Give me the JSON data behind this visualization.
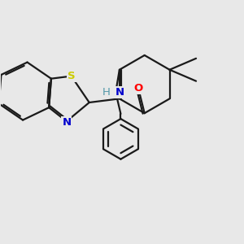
{
  "background_color": "#e8e8e8",
  "bond_color": "#1a1a1a",
  "atom_colors": {
    "O": "#ff0000",
    "S": "#cccc00",
    "N": "#0000cc",
    "H": "#5599aa",
    "C": "#1a1a1a"
  },
  "line_width": 1.6,
  "fig_w": 3.0,
  "fig_h": 3.0,
  "dpi": 100
}
